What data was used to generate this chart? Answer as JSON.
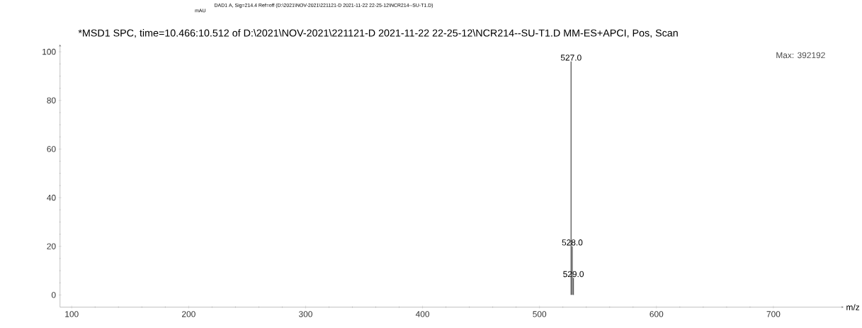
{
  "chart_data": {
    "type": "bar",
    "title": "*MSD1 SPC, time=10.466:10.512 of D:\\2021\\NOV-2021\\221121-D 2021-11-22 22-25-12\\NCR214--SU-T1.D   MM-ES+APCI, Pos, Scan",
    "xlabel": "m/z",
    "annotations": [
      "DAD1 A, Sig=214.4 Ref=off (D:\\2021\\NOV-2021\\221121-D 2021-11-22 22-25-12\\NCR214--SU-T1.D)",
      "mAU",
      "Max: 392192",
      {
        "text": "527.0",
        "x": 527,
        "y": 96
      },
      {
        "text": "528.0",
        "x": 528,
        "y": 20
      },
      {
        "text": "529.0",
        "x": 529,
        "y": 7
      }
    ],
    "x": [
      527,
      528,
      529
    ],
    "values": [
      96,
      20,
      7
    ],
    "color": "#555555",
    "xlim": [
      90,
      760
    ],
    "xticks": [
      100,
      200,
      300,
      400,
      500,
      600,
      700
    ],
    "ylim": [
      -5,
      103
    ],
    "yticks": [
      0,
      20,
      40,
      60,
      80,
      100
    ],
    "grid": false
  }
}
